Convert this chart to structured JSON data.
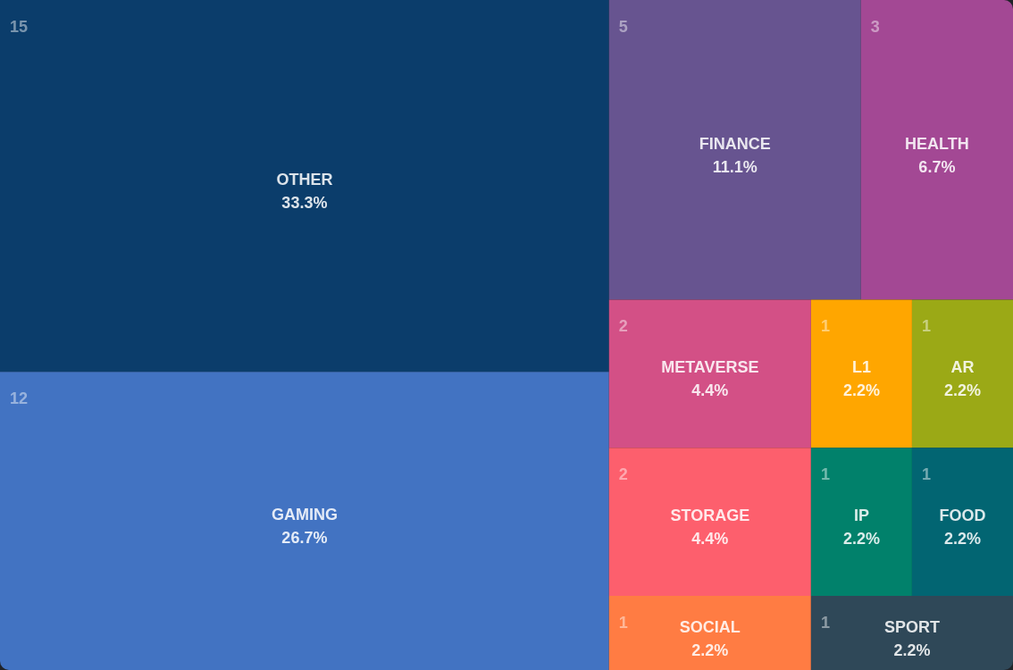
{
  "chart_data": {
    "type": "other",
    "categories": [
      "OTHER",
      "GAMING",
      "FINANCE",
      "HEALTH",
      "METAVERSE",
      "STORAGE",
      "SOCIAL",
      "L1",
      "AR",
      "IP",
      "FOOD",
      "SPORT"
    ],
    "values": [
      33.3,
      26.7,
      11.1,
      6.7,
      4.4,
      4.4,
      2.2,
      2.2,
      2.2,
      2.2,
      2.2,
      2.2
    ],
    "value_labels": [
      "33.3%",
      "26.7%",
      "11.1%",
      "6.7%",
      "4.4%",
      "4.4%",
      "2.2%",
      "2.2%",
      "2.2%",
      "2.2%",
      "2.2%",
      "2.2%"
    ],
    "colors": [
      "#0b3d6b",
      "#4273c2",
      "#675490",
      "#a34894",
      "#d35086",
      "#fd5f6d",
      "#ff7c43",
      "#ffa600",
      "#9ba916",
      "#01816b",
      "#026572",
      "#2f4858"
    ],
    "annotations": [
      {
        "text": "15",
        "x": "OTHER"
      },
      {
        "text": "12",
        "x": "GAMING"
      },
      {
        "text": "5",
        "x": "FINANCE"
      },
      {
        "text": "3",
        "x": "HEALTH"
      },
      {
        "text": "2",
        "x": "METAVERSE"
      },
      {
        "text": "2",
        "x": "STORAGE"
      },
      {
        "text": "1",
        "x": "SOCIAL"
      },
      {
        "text": "1",
        "x": "L1"
      },
      {
        "text": "1",
        "x": "AR"
      },
      {
        "text": "1",
        "x": "IP"
      },
      {
        "text": "1",
        "x": "FOOD"
      },
      {
        "text": "1",
        "x": "SPORT"
      }
    ]
  }
}
